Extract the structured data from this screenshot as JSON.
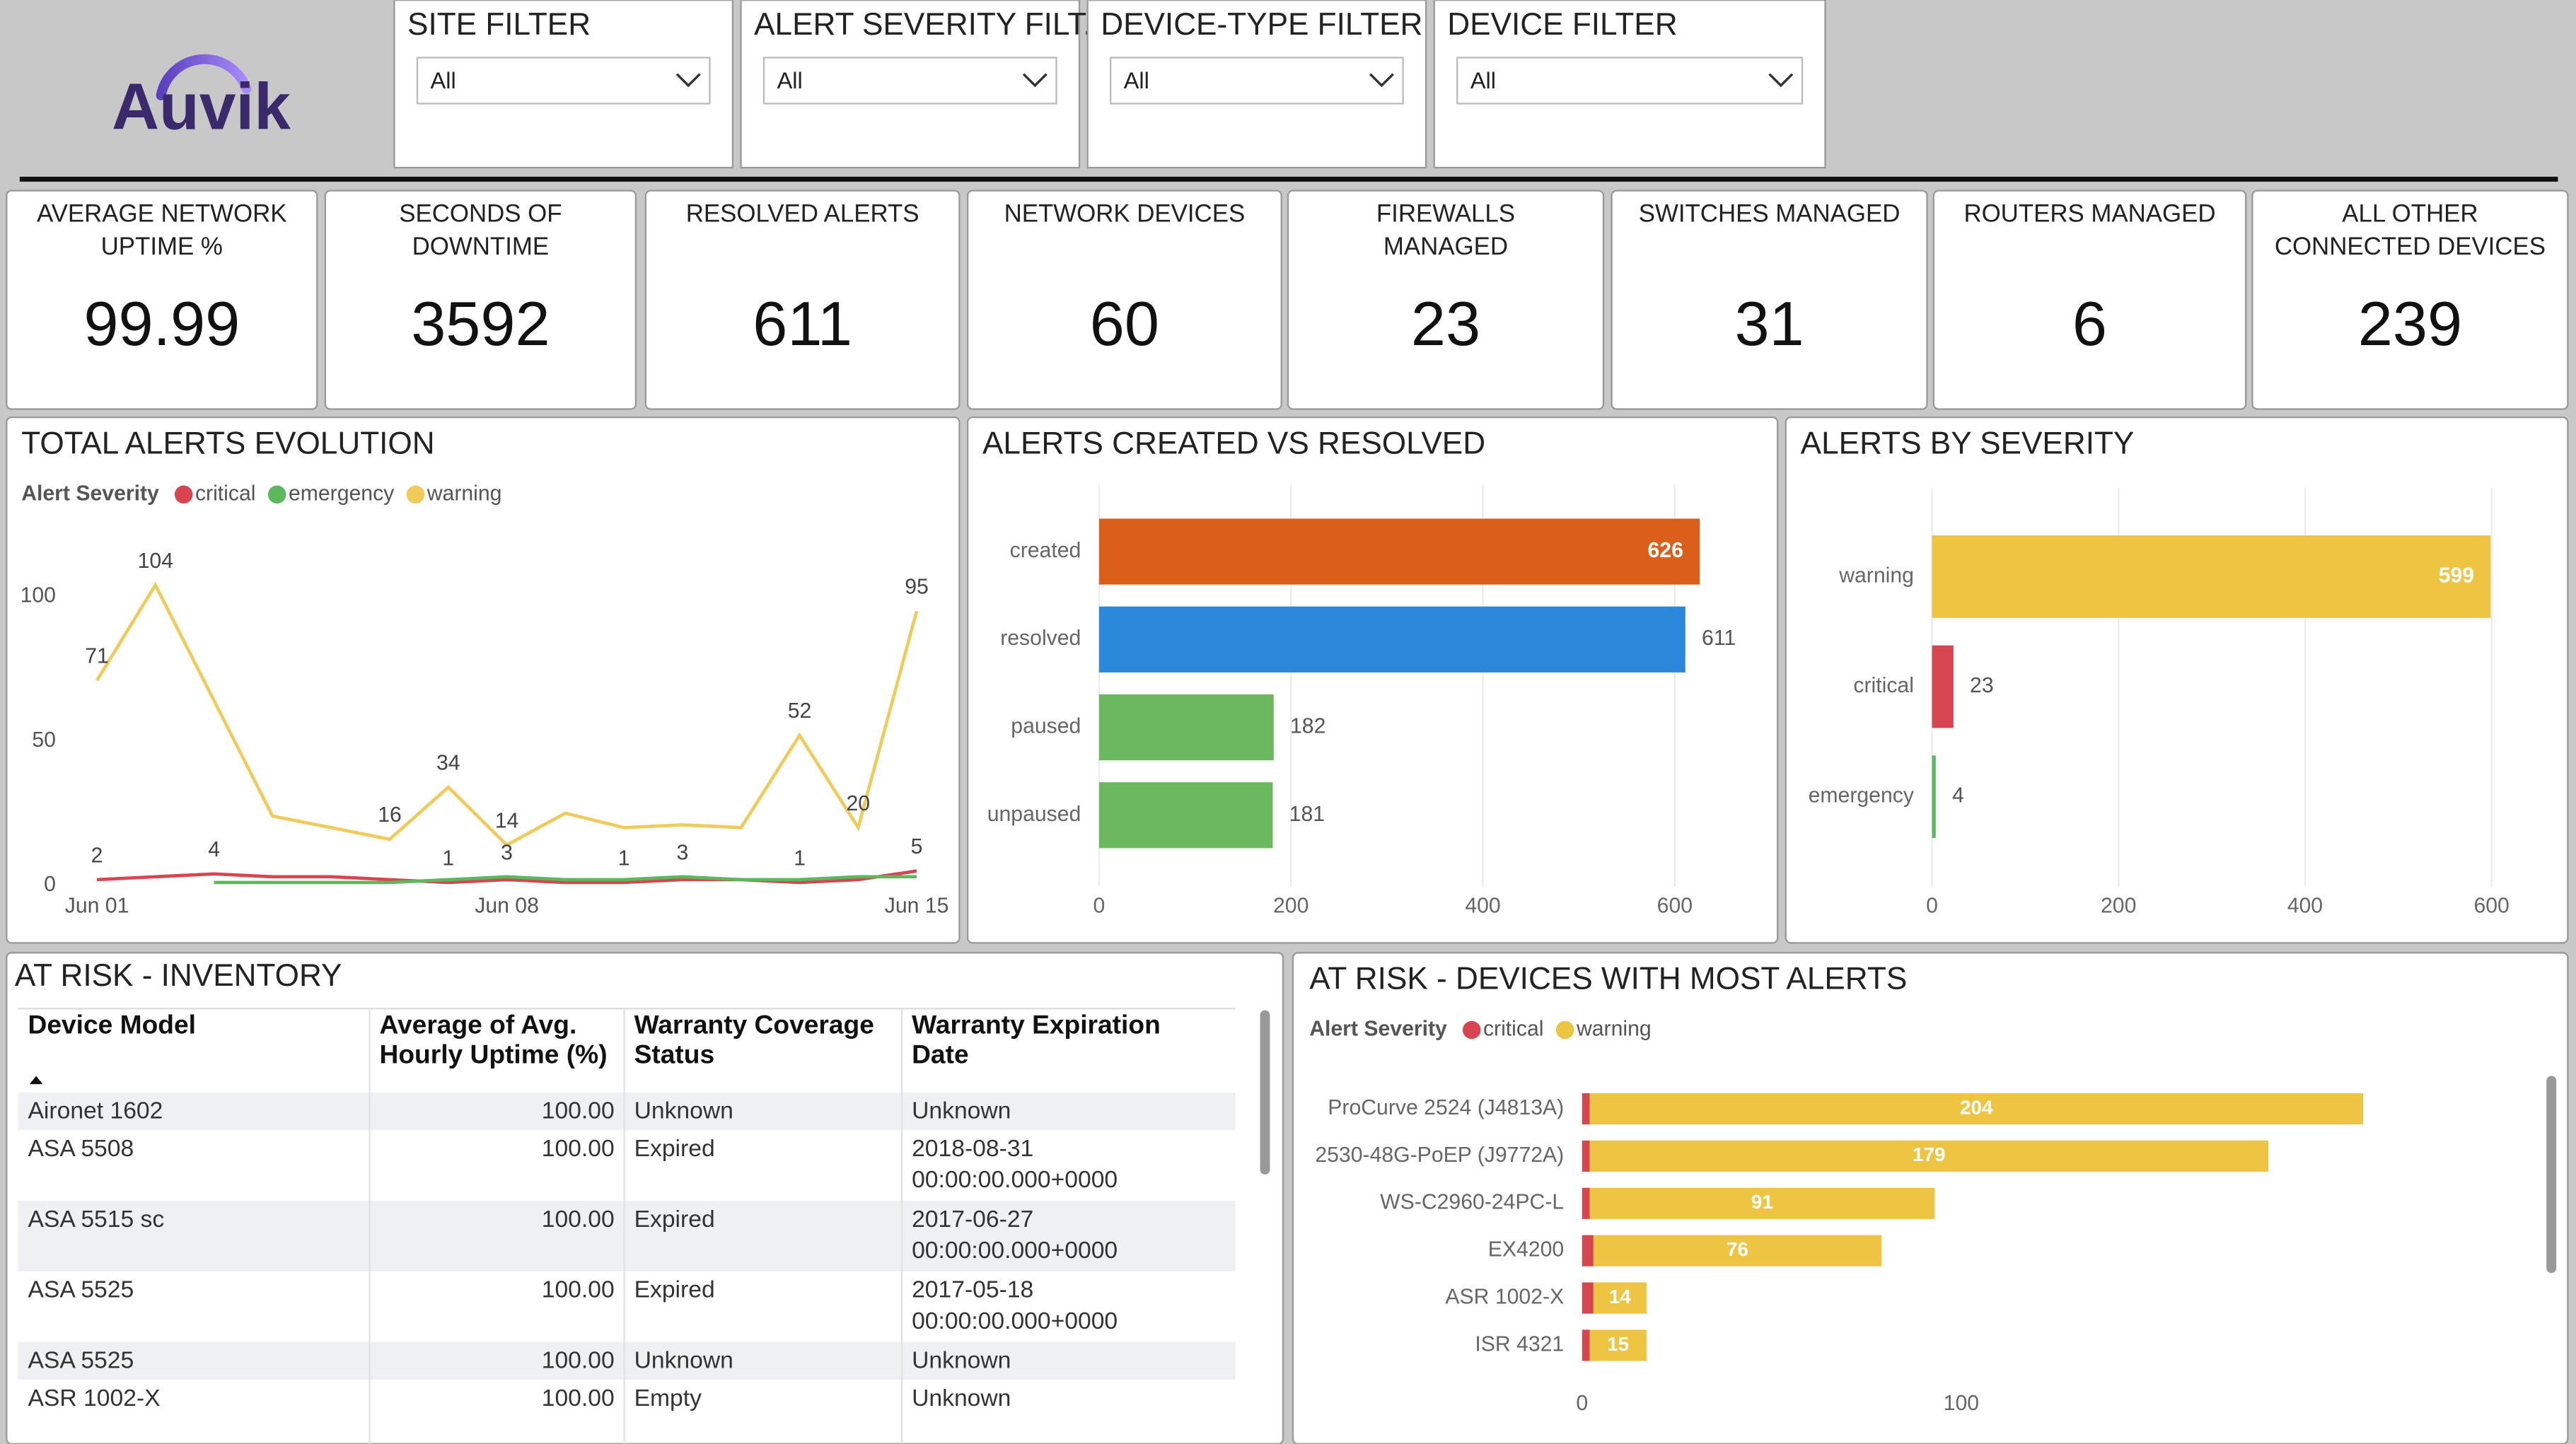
{
  "logo": "Auvik",
  "filters": [
    {
      "label": "SITE FILTER",
      "value": "All"
    },
    {
      "label": "ALERT SEVERITY FILT...",
      "value": "All"
    },
    {
      "label": "DEVICE-TYPE FILTER",
      "value": "All"
    },
    {
      "label": "DEVICE FILTER",
      "value": "All"
    }
  ],
  "kpis": [
    {
      "label": [
        "AVERAGE NETWORK",
        "UPTIME %"
      ],
      "value": 99.99
    },
    {
      "label": [
        "SECONDS OF",
        "DOWNTIME"
      ],
      "value": 3592
    },
    {
      "label": [
        "RESOLVED ALERTS"
      ],
      "value": 611
    },
    {
      "label": [
        "NETWORK DEVICES"
      ],
      "value": 60
    },
    {
      "label": [
        "FIREWALLS",
        "MANAGED"
      ],
      "value": 23
    },
    {
      "label": [
        "SWITCHES MANAGED"
      ],
      "value": 31
    },
    {
      "label": [
        "ROUTERS MANAGED"
      ],
      "value": 6
    },
    {
      "label": [
        "ALL OTHER",
        "CONNECTED DEVICES"
      ],
      "value": 239
    }
  ],
  "chart_data": [
    {
      "type": "line",
      "title": "TOTAL ALERTS EVOLUTION",
      "legend_title": "Alert Severity",
      "categories": [
        "Jun 01",
        null,
        null,
        null,
        null,
        null,
        null,
        "Jun 08",
        null,
        null,
        null,
        null,
        null,
        null,
        "Jun 15"
      ],
      "series": [
        {
          "name": "critical",
          "color": "#d64550",
          "values": [
            2,
            3,
            4,
            3,
            3,
            2,
            1,
            2,
            1,
            1,
            2,
            2,
            1,
            2,
            5
          ],
          "value_labels": [
            "2",
            null,
            "4",
            null,
            null,
            null,
            "1",
            null,
            null,
            "1",
            null,
            null,
            "1",
            null,
            "5"
          ]
        },
        {
          "name": "emergency",
          "color": "#5bb85c",
          "values": [
            null,
            null,
            1,
            1,
            1,
            1,
            2,
            3,
            2,
            2,
            3,
            2,
            2,
            3,
            3
          ],
          "value_labels": [
            null,
            null,
            null,
            null,
            null,
            null,
            null,
            "3",
            null,
            null,
            "3",
            null,
            null,
            null,
            null
          ]
        },
        {
          "name": "warning",
          "color": "#f0cb5a",
          "values": [
            71,
            104,
            64,
            24,
            20,
            16,
            34,
            14,
            25,
            20,
            21,
            20,
            52,
            20,
            95
          ],
          "value_labels": [
            "71",
            "104",
            null,
            null,
            null,
            "16",
            "34",
            "14",
            null,
            null,
            null,
            null,
            "52",
            "20",
            "95"
          ]
        }
      ],
      "ylim": [
        0,
        120
      ],
      "yticks": [
        0,
        50,
        100
      ]
    },
    {
      "type": "hbar",
      "title": "ALERTS CREATED VS RESOLVED",
      "categories": [
        "created",
        "resolved",
        "paused",
        "unpaused"
      ],
      "values": [
        626,
        611,
        182,
        181
      ],
      "colors": [
        "#d95f1a",
        "#2b87d9",
        "#6cb85f",
        "#6cb85f"
      ],
      "data_labels": true,
      "xlim": [
        0,
        690
      ],
      "xticks": [
        0,
        200,
        400,
        600
      ],
      "grid": true
    },
    {
      "type": "hbar",
      "title": "ALERTS BY SEVERITY",
      "categories": [
        "warning",
        "critical",
        "emergency"
      ],
      "values": [
        599,
        23,
        4
      ],
      "colors": [
        "#edc542",
        "#d64550",
        "#5bb85c"
      ],
      "data_labels": true,
      "xlim": [
        0,
        650
      ],
      "xticks": [
        0,
        200,
        400,
        600
      ],
      "grid": true
    },
    {
      "type": "stacked_hbar",
      "title": "AT RISK - DEVICES WITH MOST ALERTS",
      "legend_title": "Alert Severity",
      "categories": [
        "ProCurve 2524 (J4813A)",
        "2530-48G-PoEP (J9772A)",
        "WS-C2960-24PC-L",
        "EX4200",
        "ASR 1002-X",
        "ISR 4321"
      ],
      "series": [
        {
          "name": "critical",
          "color": "#d64550",
          "values": [
            2,
            2,
            2,
            3,
            3,
            2
          ],
          "data_labels": false
        },
        {
          "name": "warning",
          "color": "#edc542",
          "values": [
            204,
            179,
            91,
            76,
            14,
            15
          ],
          "data_labels": true
        }
      ],
      "xlim": [
        0,
        250
      ],
      "xticks": [
        0,
        100
      ]
    }
  ],
  "table": {
    "title": "AT RISK - INVENTORY",
    "columns": [
      [
        "Device Model"
      ],
      [
        "Average of Avg.",
        "Hourly Uptime (%)"
      ],
      [
        "Warranty Coverage",
        "Status"
      ],
      [
        "Warranty Expiration",
        "Date"
      ]
    ],
    "rows": [
      [
        "Aironet 1602",
        "100.00",
        "Unknown",
        "Unknown"
      ],
      [
        "ASA 5508",
        "100.00",
        "Expired",
        [
          "2018-08-31",
          "00:00:00.000+0000"
        ]
      ],
      [
        "ASA 5515 sc",
        "100.00",
        "Expired",
        [
          "2017-06-27",
          "00:00:00.000+0000"
        ]
      ],
      [
        "ASA 5525",
        "100.00",
        "Expired",
        [
          "2017-05-18",
          "00:00:00.000+0000"
        ]
      ],
      [
        "ASA 5525",
        "100.00",
        "Unknown",
        "Unknown"
      ],
      [
        "ASR 1002-X",
        "100.00",
        "Empty",
        "Unknown"
      ]
    ]
  }
}
